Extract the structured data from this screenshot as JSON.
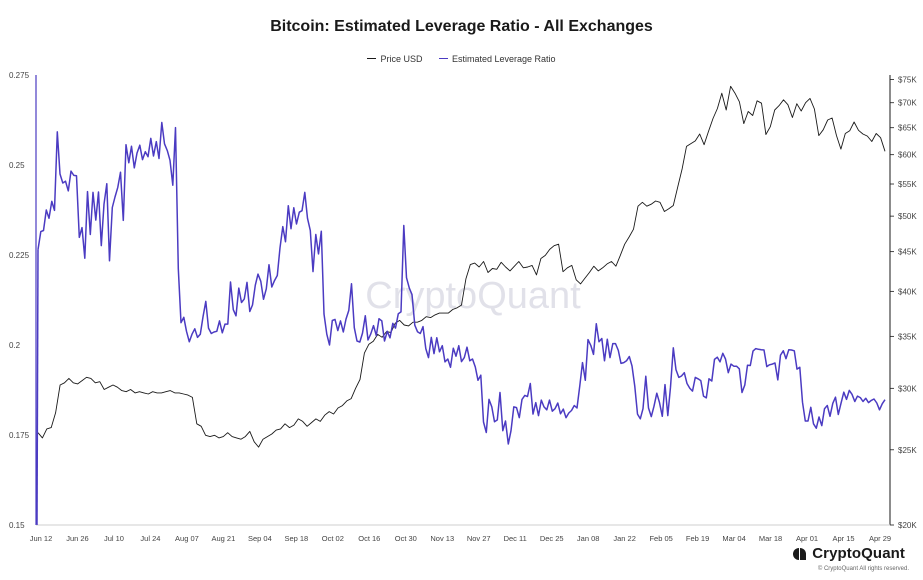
{
  "chart_data": {
    "type": "line",
    "title": "Bitcoin: Estimated Leverage Ratio - All Exchanges",
    "legend": {
      "placement": "top-center"
    },
    "grid": false,
    "watermark": "CryptoQuant",
    "x_labels": [
      "Jun 12",
      "Jun 26",
      "Jul 10",
      "Jul 24",
      "Aug 07",
      "Aug 21",
      "Sep 04",
      "Sep 18",
      "Oct 02",
      "Oct 16",
      "Oct 30",
      "Nov 13",
      "Nov 27",
      "Dec 11",
      "Dec 25",
      "Jan 08",
      "Jan 22",
      "Feb 05",
      "Feb 19",
      "Mar 04",
      "Mar 18",
      "Apr 01",
      "Apr 15",
      "Apr 29"
    ],
    "y_left": {
      "ticks": [
        "0.15",
        "0.175",
        "0.2",
        "0.225",
        "0.25",
        "0.275"
      ],
      "range": [
        0.15,
        0.275
      ]
    },
    "y_right": {
      "ticks": [
        "$20K",
        "$25K",
        "$30K",
        "$35K",
        "$40K",
        "$45K",
        "$50K",
        "$55K",
        "$60K",
        "$65K",
        "$70K",
        "$75K"
      ],
      "range": [
        20000,
        76000
      ],
      "scale": "log"
    },
    "series": [
      {
        "name": "Price USD",
        "color": "#1a1a1a",
        "axis": "right",
        "values": [
          26300,
          25900,
          26600,
          26700,
          27900,
          30300,
          30500,
          30900,
          30500,
          30400,
          30700,
          31000,
          30900,
          30500,
          30600,
          29900,
          30100,
          30300,
          30100,
          29800,
          29700,
          29900,
          29600,
          29700,
          29600,
          29500,
          29700,
          29600,
          29600,
          29700,
          29800,
          29600,
          29600,
          29500,
          29400,
          29200,
          27000,
          26800,
          26100,
          26000,
          26100,
          25900,
          26000,
          26300,
          26000,
          25900,
          25800,
          26000,
          26400,
          25600,
          25200,
          25800,
          26000,
          26200,
          26500,
          26600,
          27000,
          26700,
          26900,
          27400,
          27200,
          26800,
          27100,
          27400,
          27200,
          27700,
          28000,
          27800,
          28300,
          28500,
          28900,
          29100,
          30000,
          30800,
          33300,
          34200,
          34500,
          35200,
          34900,
          35500,
          35400,
          36400,
          36700,
          36200,
          36100,
          36500,
          36500,
          36700,
          37100,
          37000,
          37300,
          37500,
          37500,
          37500,
          37900,
          38100,
          38400,
          41500,
          43300,
          43500,
          43000,
          43700,
          42300,
          42800,
          42700,
          43600,
          43000,
          42500,
          43100,
          43700,
          42900,
          43000,
          43200,
          42000,
          44100,
          44500,
          45300,
          45800,
          46000,
          42400,
          42900,
          43200,
          41400,
          40900,
          41600,
          42300,
          43100,
          42500,
          42900,
          43400,
          43700,
          43100,
          44500,
          46000,
          47000,
          48100,
          51500,
          52100,
          51500,
          51800,
          52300,
          52100,
          50700,
          51100,
          51600,
          54500,
          57500,
          61500,
          62000,
          62500,
          63800,
          61800,
          64300,
          66800,
          68800,
          72000,
          68500,
          73500,
          72000,
          70200,
          65800,
          68200,
          67400,
          70400,
          69900,
          63700,
          65200,
          68500,
          69400,
          70600,
          69600,
          67000,
          69800,
          68300,
          70000,
          70900,
          68700,
          63500,
          64600,
          66500,
          66900,
          63500,
          61000,
          63900,
          64400,
          66100,
          64500,
          63800,
          63400,
          62400,
          63900,
          63100,
          60600
        ]
      },
      {
        "name": "Estimated Leverage Ratio",
        "color": "#4b3bc2",
        "axis": "left",
        "values": [
          0.2265,
          0.2315,
          0.2318,
          0.2375,
          0.2352,
          0.2399,
          0.2374,
          0.2592,
          0.2475,
          0.245,
          0.2455,
          0.2428,
          0.2483,
          0.2471,
          0.247,
          0.2299,
          0.2326,
          0.2241,
          0.2426,
          0.2307,
          0.2424,
          0.2347,
          0.2425,
          0.2276,
          0.2391,
          0.2448,
          0.2234,
          0.2382,
          0.2411,
          0.2438,
          0.248,
          0.2346,
          0.2556,
          0.2506,
          0.2552,
          0.2492,
          0.2533,
          0.2555,
          0.2515,
          0.2537,
          0.2523,
          0.2574,
          0.2525,
          0.2565,
          0.2518,
          0.2618,
          0.2559,
          0.254,
          0.2513,
          0.2444,
          0.2604,
          0.2212,
          0.2062,
          0.2077,
          0.2038,
          0.2009,
          0.203,
          0.2045,
          0.2021,
          0.203,
          0.2078,
          0.2121,
          0.2047,
          0.2032,
          0.2036,
          0.2038,
          0.2067,
          0.2034,
          0.2058,
          0.2058,
          0.2175,
          0.2098,
          0.2081,
          0.2158,
          0.2118,
          0.2128,
          0.2174,
          0.2093,
          0.2111,
          0.2166,
          0.2197,
          0.2177,
          0.2127,
          0.2156,
          0.2223,
          0.2161,
          0.2179,
          0.2193,
          0.227,
          0.2329,
          0.2287,
          0.2387,
          0.2323,
          0.2381,
          0.2336,
          0.2369,
          0.2373,
          0.2424,
          0.2352,
          0.2318,
          0.2204,
          0.2307,
          0.2253,
          0.2316,
          0.2086,
          0.203,
          0.2,
          0.2068,
          0.2071,
          0.204,
          0.2067,
          0.2036,
          0.2072,
          0.2096,
          0.217,
          0.2048,
          0.2011,
          0.2008,
          0.2033,
          0.2081,
          0.2014,
          0.2031,
          0.2054,
          0.2026,
          0.2073,
          0.2067,
          0.2011,
          0.2038,
          0.202,
          0.206,
          0.2047,
          0.2087,
          0.2092,
          0.2332,
          0.2187,
          0.2158,
          0.214,
          0.2055,
          0.2037,
          0.2032,
          0.2051,
          0.199,
          0.1965,
          0.2021,
          0.1976,
          0.202,
          0.1981,
          0.1998,
          0.1953,
          0.1961,
          0.1938,
          0.1991,
          0.1969,
          0.1998,
          0.1954,
          0.1965,
          0.1994,
          0.1956,
          0.1961,
          0.1939,
          0.1902,
          0.1916,
          0.1786,
          0.1757,
          0.1849,
          0.1828,
          0.1787,
          0.1792,
          0.1868,
          0.1762,
          0.1789,
          0.1725,
          0.1762,
          0.1828,
          0.1826,
          0.1798,
          0.1849,
          0.186,
          0.1857,
          0.1893,
          0.1808,
          0.184,
          0.1804,
          0.1847,
          0.1828,
          0.182,
          0.1847,
          0.1816,
          0.1823,
          0.1839,
          0.1809,
          0.1822,
          0.1798,
          0.1811,
          0.1818,
          0.1832,
          0.1825,
          0.1887,
          0.1951,
          0.1902,
          0.2015,
          0.1999,
          0.1974,
          0.2059,
          0.2009,
          0.2018,
          0.1956,
          0.2016,
          0.1965,
          0.2004,
          0.2004,
          0.1985,
          0.1949,
          0.1951,
          0.1956,
          0.1968,
          0.1942,
          0.1885,
          0.1808,
          0.1795,
          0.1823,
          0.1913,
          0.1825,
          0.1801,
          0.183,
          0.1866,
          0.184,
          0.1802,
          0.189,
          0.1804,
          0.1883,
          0.1992,
          0.1931,
          0.191,
          0.1914,
          0.1923,
          0.1893,
          0.188,
          0.1872,
          0.191,
          0.1906,
          0.1901,
          0.1858,
          0.1853,
          0.1906,
          0.19,
          0.196,
          0.1966,
          0.1953,
          0.1977,
          0.1961,
          0.1923,
          0.1947,
          0.1941,
          0.1941,
          0.1934,
          0.1868,
          0.1889,
          0.1944,
          0.1943,
          0.1983,
          0.199,
          0.1988,
          0.1987,
          0.1986,
          0.194,
          0.1945,
          0.1947,
          0.195,
          0.1903,
          0.1972,
          0.1984,
          0.1962,
          0.1987,
          0.1986,
          0.1984,
          0.1933,
          0.1938,
          0.1841,
          0.1789,
          0.1789,
          0.1827,
          0.1781,
          0.1769,
          0.18,
          0.1776,
          0.1823,
          0.1832,
          0.1802,
          0.1838,
          0.1855,
          0.1807,
          0.1838,
          0.1869,
          0.1849,
          0.1874,
          0.1863,
          0.1843,
          0.1858,
          0.1854,
          0.1843,
          0.1852,
          0.184,
          0.1846,
          0.185,
          0.1839,
          0.182,
          0.1837,
          0.1848
        ]
      }
    ]
  },
  "brand": {
    "name": "CryptoQuant",
    "copyright": "© CryptoQuant All rights reserved."
  }
}
